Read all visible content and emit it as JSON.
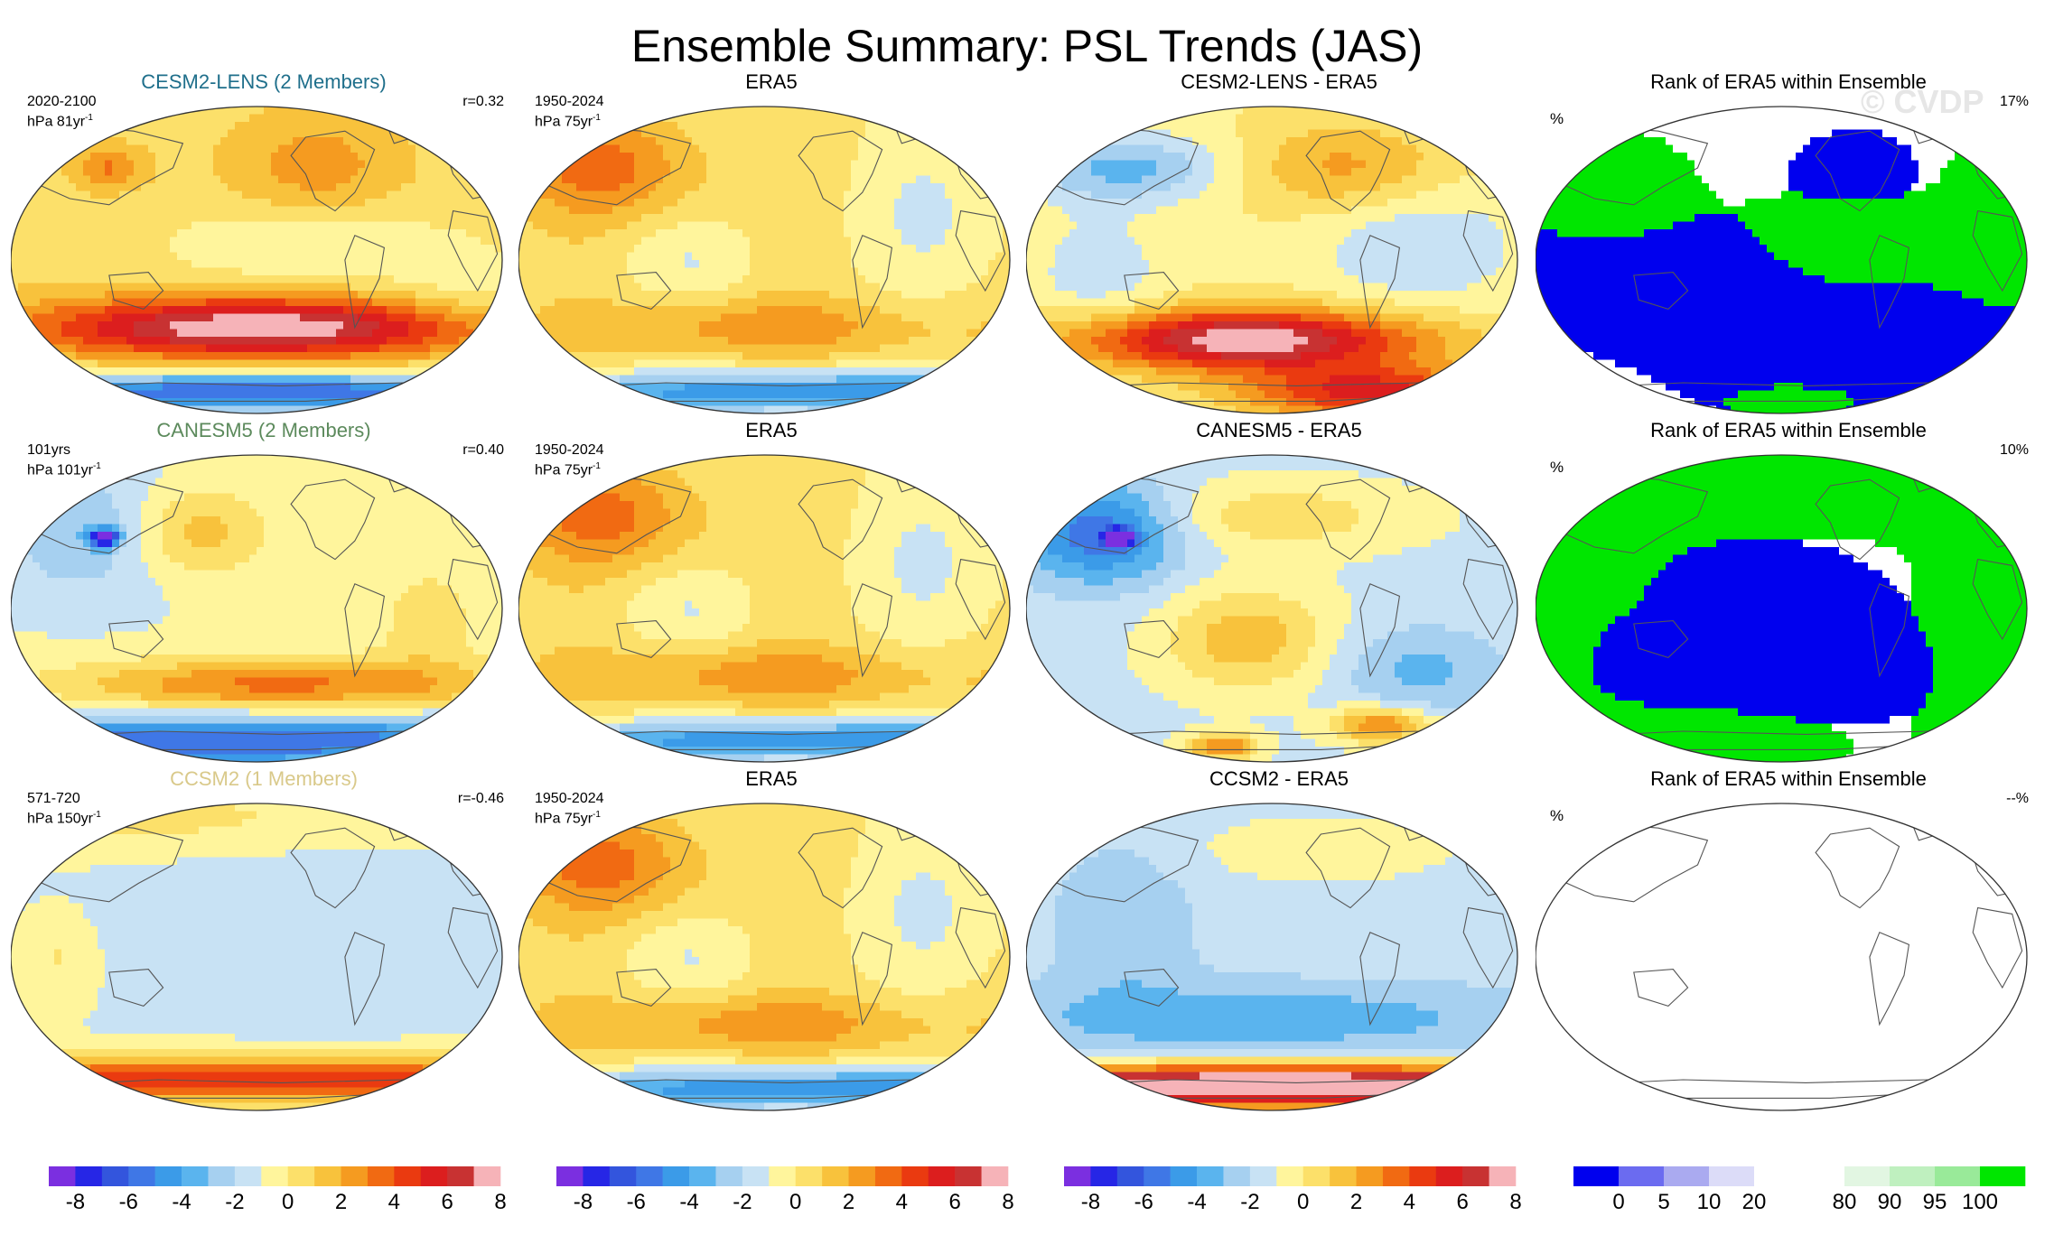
{
  "title": "Ensemble Summary: PSL Trends (JAS)",
  "watermark": "© CVDP",
  "chart_data": {
    "type": "heatmap",
    "title": "Ensemble Summary: PSL Trends (JAS)",
    "rows": [
      {
        "model": {
          "title": "CESM2-LENS (2 Members)",
          "title_color": "#1f6f8b",
          "period": "2020-2100",
          "units": "hPa 81yr",
          "units_sup": "-1",
          "corr": "r=0.32",
          "pattern": "cesm2_model"
        },
        "obs": {
          "title": "ERA5",
          "period": "1950-2024",
          "units": "hPa 75yr",
          "units_sup": "-1",
          "pattern": "era5"
        },
        "diff": {
          "title": "CESM2-LENS - ERA5",
          "pattern": "cesm2_diff"
        },
        "rank": {
          "title": "Rank of ERA5 within Ensemble",
          "unit": "%",
          "value": "17%",
          "pattern": "rank1"
        }
      },
      {
        "model": {
          "title": "CANESM5 (2 Members)",
          "title_color": "#5c8a5c",
          "period": "101yrs",
          "units": "hPa 101yr",
          "units_sup": "-1",
          "corr": "r=0.40",
          "pattern": "canesm5_model"
        },
        "obs": {
          "title": "ERA5",
          "period": "1950-2024",
          "units": "hPa 75yr",
          "units_sup": "-1",
          "pattern": "era5"
        },
        "diff": {
          "title": "CANESM5 - ERA5",
          "pattern": "canesm5_diff"
        },
        "rank": {
          "title": "Rank of ERA5 within Ensemble",
          "unit": "%",
          "value": "10%",
          "pattern": "rank2"
        }
      },
      {
        "model": {
          "title": "CCSM2 (1 Members)",
          "title_color": "#d9c98a",
          "period": "571-720",
          "units": "hPa 150yr",
          "units_sup": "-1",
          "corr": "r=-0.46",
          "pattern": "ccsm2_model"
        },
        "obs": {
          "title": "ERA5",
          "period": "1950-2024",
          "units": "hPa 75yr",
          "units_sup": "-1",
          "pattern": "era5"
        },
        "diff": {
          "title": "CCSM2 - ERA5",
          "pattern": "ccsm2_diff"
        },
        "rank": {
          "title": "Rank of ERA5 within Ensemble",
          "unit": "%",
          "value": "--%",
          "pattern": "empty"
        }
      }
    ],
    "psl_colorbar": {
      "colors": [
        "#7b2fe0",
        "#2626e6",
        "#3355dd",
        "#3f77e6",
        "#3b9be8",
        "#5ab4ee",
        "#a6d0f0",
        "#c8e2f4",
        "#fff59c",
        "#fce06a",
        "#f8c23c",
        "#f59b20",
        "#f16a12",
        "#ea3a10",
        "#dc1e1e",
        "#c83232",
        "#f6b3b8"
      ],
      "ticks": [
        "-8",
        "-6",
        "-4",
        "-2",
        "0",
        "2",
        "4",
        "6",
        "8"
      ]
    },
    "rank_colorbar": {
      "colors": [
        "#0000ee",
        "#6b6bf0",
        "#aaaaf0",
        "#dcdcf8",
        "#ffffff",
        "#ffffff",
        "#e2f6e2",
        "#bff0bf",
        "#99ea99",
        "#00e600"
      ],
      "ticks": [
        "0",
        "5",
        "10",
        "20",
        "80",
        "90",
        "95",
        "100"
      ]
    }
  }
}
